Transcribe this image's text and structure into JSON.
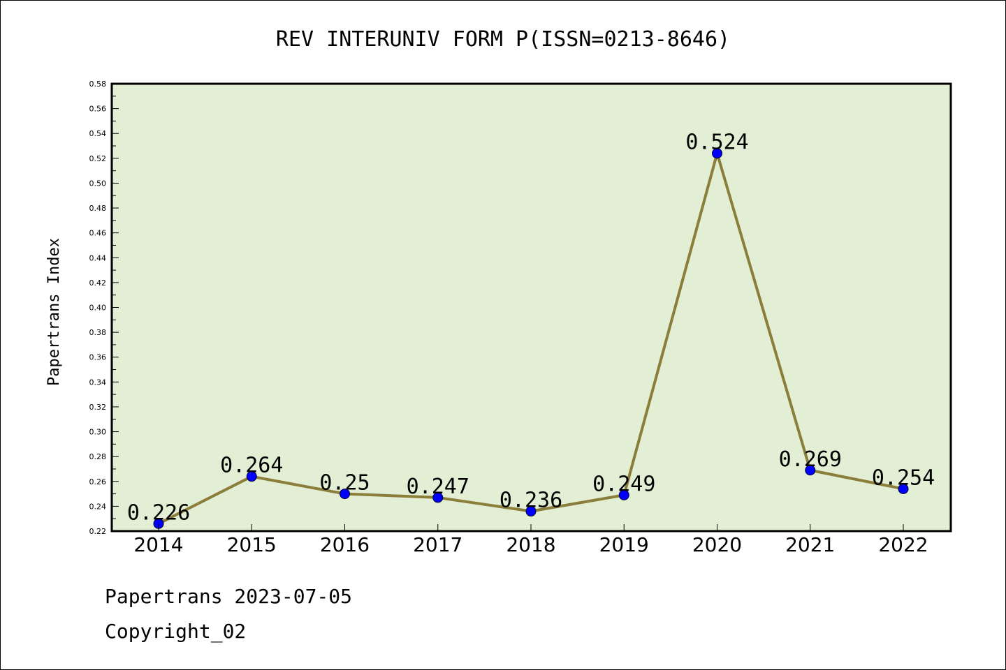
{
  "chart_data": {
    "type": "line",
    "title": "REV INTERUNIV FORM P(ISSN=0213-8646)",
    "ylabel": "Papertrans Index",
    "xlabel": "",
    "categories": [
      "2014",
      "2015",
      "2016",
      "2017",
      "2018",
      "2019",
      "2020",
      "2021",
      "2022"
    ],
    "values": [
      0.226,
      0.264,
      0.25,
      0.247,
      0.236,
      0.249,
      0.524,
      0.269,
      0.254
    ],
    "data_labels": [
      "0.226",
      "0.264",
      "0.25",
      "0.247",
      "0.236",
      "0.249",
      "0.524",
      "0.269",
      "0.254"
    ],
    "ylim": [
      0.22,
      0.58
    ],
    "yticks": [
      "0.22",
      "0.24",
      "0.26",
      "0.28",
      "0.30",
      "0.32",
      "0.34",
      "0.36",
      "0.38",
      "0.40",
      "0.42",
      "0.44",
      "0.46",
      "0.48",
      "0.50",
      "0.52",
      "0.54",
      "0.56",
      "0.58"
    ],
    "grid": false,
    "legend": "none",
    "colors": {
      "plot_background": "#e2efd5",
      "line": "#8b7d3a",
      "marker": "#0000ff"
    }
  },
  "footer": {
    "line1": "Papertrans 2023-07-05",
    "line2": "Copyright_02"
  }
}
